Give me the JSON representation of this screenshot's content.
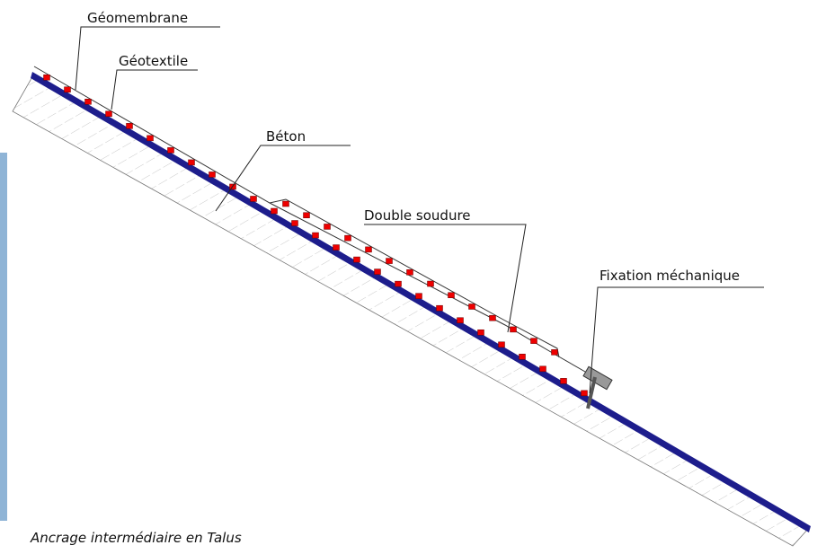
{
  "labels": {
    "geomembrane": "Géomembrane",
    "geotextile": "Géotextile",
    "beton": "Béton",
    "double_soudure": "Double soudure",
    "fixation": "Fixation méchanique"
  },
  "caption": "Ancrage intermédiaire en Talus"
}
